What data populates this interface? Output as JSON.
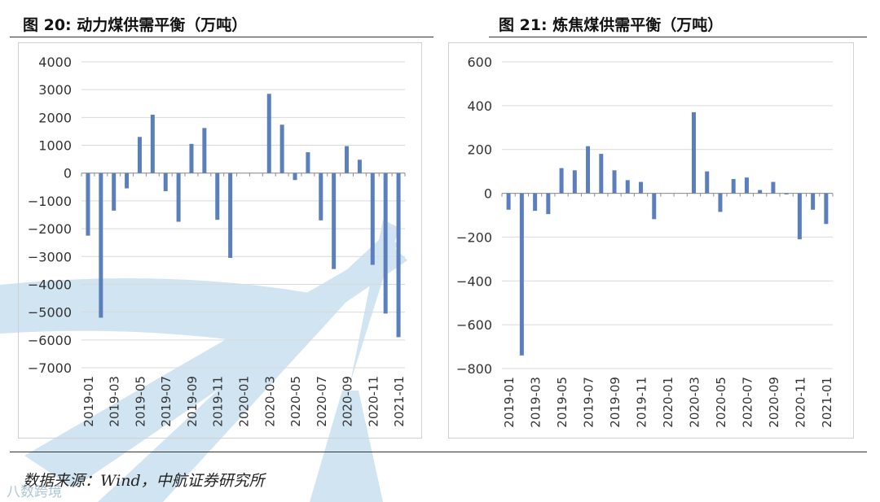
{
  "figures": [
    {
      "title": "图 20: 动力煤供需平衡（万吨）"
    },
    {
      "title": "图 21: 炼焦煤供需平衡（万吨）"
    }
  ],
  "source_text": "数据来源：Wind，中航证券研究所",
  "watermark_text": "八数跨境",
  "colors": {
    "bar": "#5b7fbd",
    "grid": "#d9d9d9",
    "axis": "#8c8c8c",
    "watermark": "#c9e0f0"
  },
  "chart_data": [
    {
      "type": "bar",
      "title": "动力煤供需平衡（万吨）",
      "categories": [
        "2019-01",
        "2019-02",
        "2019-03",
        "2019-04",
        "2019-05",
        "2019-06",
        "2019-07",
        "2019-08",
        "2019-09",
        "2019-10",
        "2019-11",
        "2019-12",
        "2020-01",
        "2020-02",
        "2020-03",
        "2020-04",
        "2020-05",
        "2020-06",
        "2020-07",
        "2020-08",
        "2020-09",
        "2020-10",
        "2020-11",
        "2020-12",
        "2021-01"
      ],
      "tick_labels": [
        "2019-01",
        "2019-03",
        "2019-05",
        "2019-07",
        "2019-09",
        "2019-11",
        "2020-01",
        "2020-03",
        "2020-05",
        "2020-07",
        "2020-09",
        "2020-11",
        "2021-01"
      ],
      "values": [
        -2250,
        -5200,
        -1350,
        -550,
        1300,
        2100,
        -650,
        -1750,
        1050,
        1620,
        -1680,
        -3050,
        0,
        0,
        2850,
        1740,
        -250,
        750,
        -1700,
        -3450,
        970,
        480,
        -3300,
        -5050,
        -5900
      ],
      "ylim": [
        -7000,
        4000
      ],
      "yticks": [
        -7000,
        -6000,
        -5000,
        -4000,
        -3000,
        -2000,
        -1000,
        0,
        1000,
        2000,
        3000,
        4000
      ],
      "xlabel": "",
      "ylabel": "",
      "grid": true
    },
    {
      "type": "bar",
      "title": "炼焦煤供需平衡（万吨）",
      "categories": [
        "2019-01",
        "2019-02",
        "2019-03",
        "2019-04",
        "2019-05",
        "2019-06",
        "2019-07",
        "2019-08",
        "2019-09",
        "2019-10",
        "2019-11",
        "2019-12",
        "2020-01",
        "2020-02",
        "2020-03",
        "2020-04",
        "2020-05",
        "2020-06",
        "2020-07",
        "2020-08",
        "2020-09",
        "2020-10",
        "2020-11",
        "2020-12",
        "2021-01"
      ],
      "tick_labels": [
        "2019-01",
        "2019-03",
        "2019-05",
        "2019-07",
        "2019-09",
        "2019-11",
        "2020-01",
        "2020-03",
        "2020-05",
        "2020-07",
        "2020-09",
        "2020-11",
        "2021-01"
      ],
      "values": [
        -75,
        -740,
        -80,
        -95,
        115,
        105,
        215,
        180,
        105,
        60,
        52,
        -118,
        0,
        0,
        370,
        100,
        -85,
        65,
        72,
        15,
        52,
        -5,
        -210,
        -75,
        -140
      ],
      "ylim": [
        -800,
        600
      ],
      "yticks": [
        -800,
        -600,
        -400,
        -200,
        0,
        200,
        400,
        600
      ],
      "xlabel": "",
      "ylabel": "",
      "grid": true
    }
  ]
}
